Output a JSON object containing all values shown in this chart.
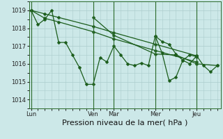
{
  "background_color": "#cce8e8",
  "grid_color": "#aacccc",
  "line_color": "#1a5c1a",
  "marker_color": "#1a5c1a",
  "xlabel": "Pression niveau de la mer( hPa )",
  "xlabel_fontsize": 8,
  "tick_fontsize": 6,
  "ylim": [
    1013.5,
    1019.5
  ],
  "yticks": [
    1014,
    1015,
    1016,
    1017,
    1018,
    1019
  ],
  "xlim": [
    -0.3,
    27.5
  ],
  "day_labels": [
    "Lun",
    "Ven",
    "Mar",
    "Mer",
    "Jeu"
  ],
  "day_positions": [
    0,
    9,
    12,
    18,
    24
  ],
  "s1_x": [
    0,
    1,
    2,
    3,
    4,
    5,
    6,
    7,
    8,
    9,
    10,
    11,
    12,
    13,
    14,
    15,
    16,
    17,
    18,
    19,
    20,
    21,
    22,
    23,
    24
  ],
  "s1_y": [
    1019.0,
    1018.2,
    1018.5,
    1019.0,
    1017.2,
    1017.2,
    1016.5,
    1015.8,
    1014.85,
    1014.85,
    1016.35,
    1016.1,
    1017.0,
    1016.5,
    1016.0,
    1015.9,
    1016.05,
    1015.9,
    1017.55,
    1017.25,
    1017.1,
    1016.55,
    1016.2,
    1016.5,
    1016.4
  ],
  "s2_x": [
    0,
    2,
    4,
    9,
    12,
    18,
    24
  ],
  "s2_y": [
    1019.0,
    1018.8,
    1018.6,
    1018.1,
    1017.75,
    1017.1,
    1016.45
  ],
  "s3_x": [
    0,
    2,
    4,
    9,
    12,
    18,
    24
  ],
  "s3_y": [
    1019.0,
    1018.55,
    1018.35,
    1017.8,
    1017.4,
    1016.75,
    1016.1
  ],
  "s4_x": [
    9,
    12,
    18,
    21,
    24,
    27
  ],
  "s4_y": [
    1018.6,
    1017.6,
    1016.55,
    1016.5,
    1016.0,
    1015.9
  ],
  "s5_x": [
    18,
    19,
    20,
    21,
    22,
    23,
    24,
    25,
    26,
    27
  ],
  "s5_y": [
    1017.55,
    1016.6,
    1015.05,
    1015.25,
    1016.2,
    1016.0,
    1016.45,
    1015.9,
    1015.55,
    1015.9
  ]
}
